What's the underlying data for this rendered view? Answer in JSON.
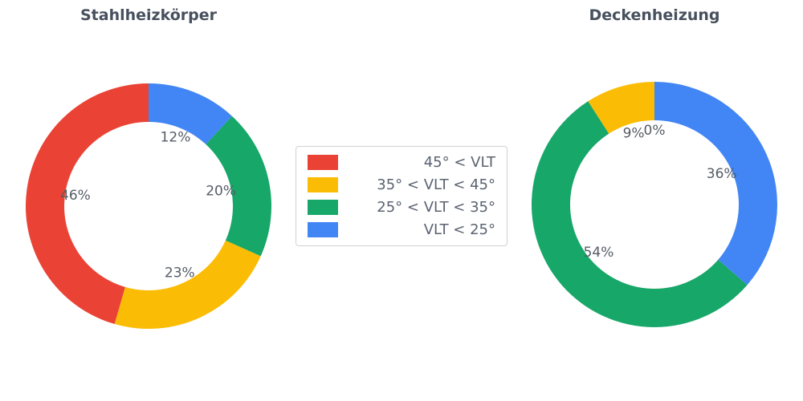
{
  "page": {
    "background": "#ffffff"
  },
  "charts": {
    "left": {
      "title": "Stahlheizkörper"
    },
    "right": {
      "title": "Deckenheizung"
    }
  },
  "legend": {
    "items": [
      {
        "label": "45° < VLT",
        "color": "#EA4335"
      },
      {
        "label": "35° < VLT < 45°",
        "color": "#FBBC05"
      },
      {
        "label": "25° < VLT < 35°",
        "color": "#17A769"
      },
      {
        "label": "VLT < 25°",
        "color": "#4285F4"
      }
    ]
  },
  "chart_data": [
    {
      "type": "pie",
      "title": "Stahlheizkörper",
      "labels": [
        "45° < VLT",
        "35° < VLT < 45°",
        "25° < VLT < 35°",
        "VLT < 25°"
      ],
      "values": [
        46,
        23,
        20,
        12
      ],
      "pct_labels": [
        "46%",
        "23%",
        "20%",
        "12%"
      ],
      "colors": [
        "#EA4335",
        "#FBBC05",
        "#17A769",
        "#4285F4"
      ],
      "donut": true,
      "start_angle": 90,
      "counterclock": true,
      "legend_position": "center-between-charts"
    },
    {
      "type": "pie",
      "title": "Deckenheizung",
      "labels": [
        "45° < VLT",
        "35° < VLT < 45°",
        "25° < VLT < 35°",
        "VLT < 25°"
      ],
      "values": [
        0,
        9,
        54,
        36
      ],
      "pct_labels": [
        "0%",
        "9%",
        "54%",
        "36%"
      ],
      "colors": [
        "#EA4335",
        "#FBBC05",
        "#17A769",
        "#4285F4"
      ],
      "donut": true,
      "start_angle": 90,
      "counterclock": true,
      "legend_position": "center-between-charts"
    }
  ],
  "text_colors": {
    "title": "#47505e",
    "percent_labels": "#555c66"
  }
}
